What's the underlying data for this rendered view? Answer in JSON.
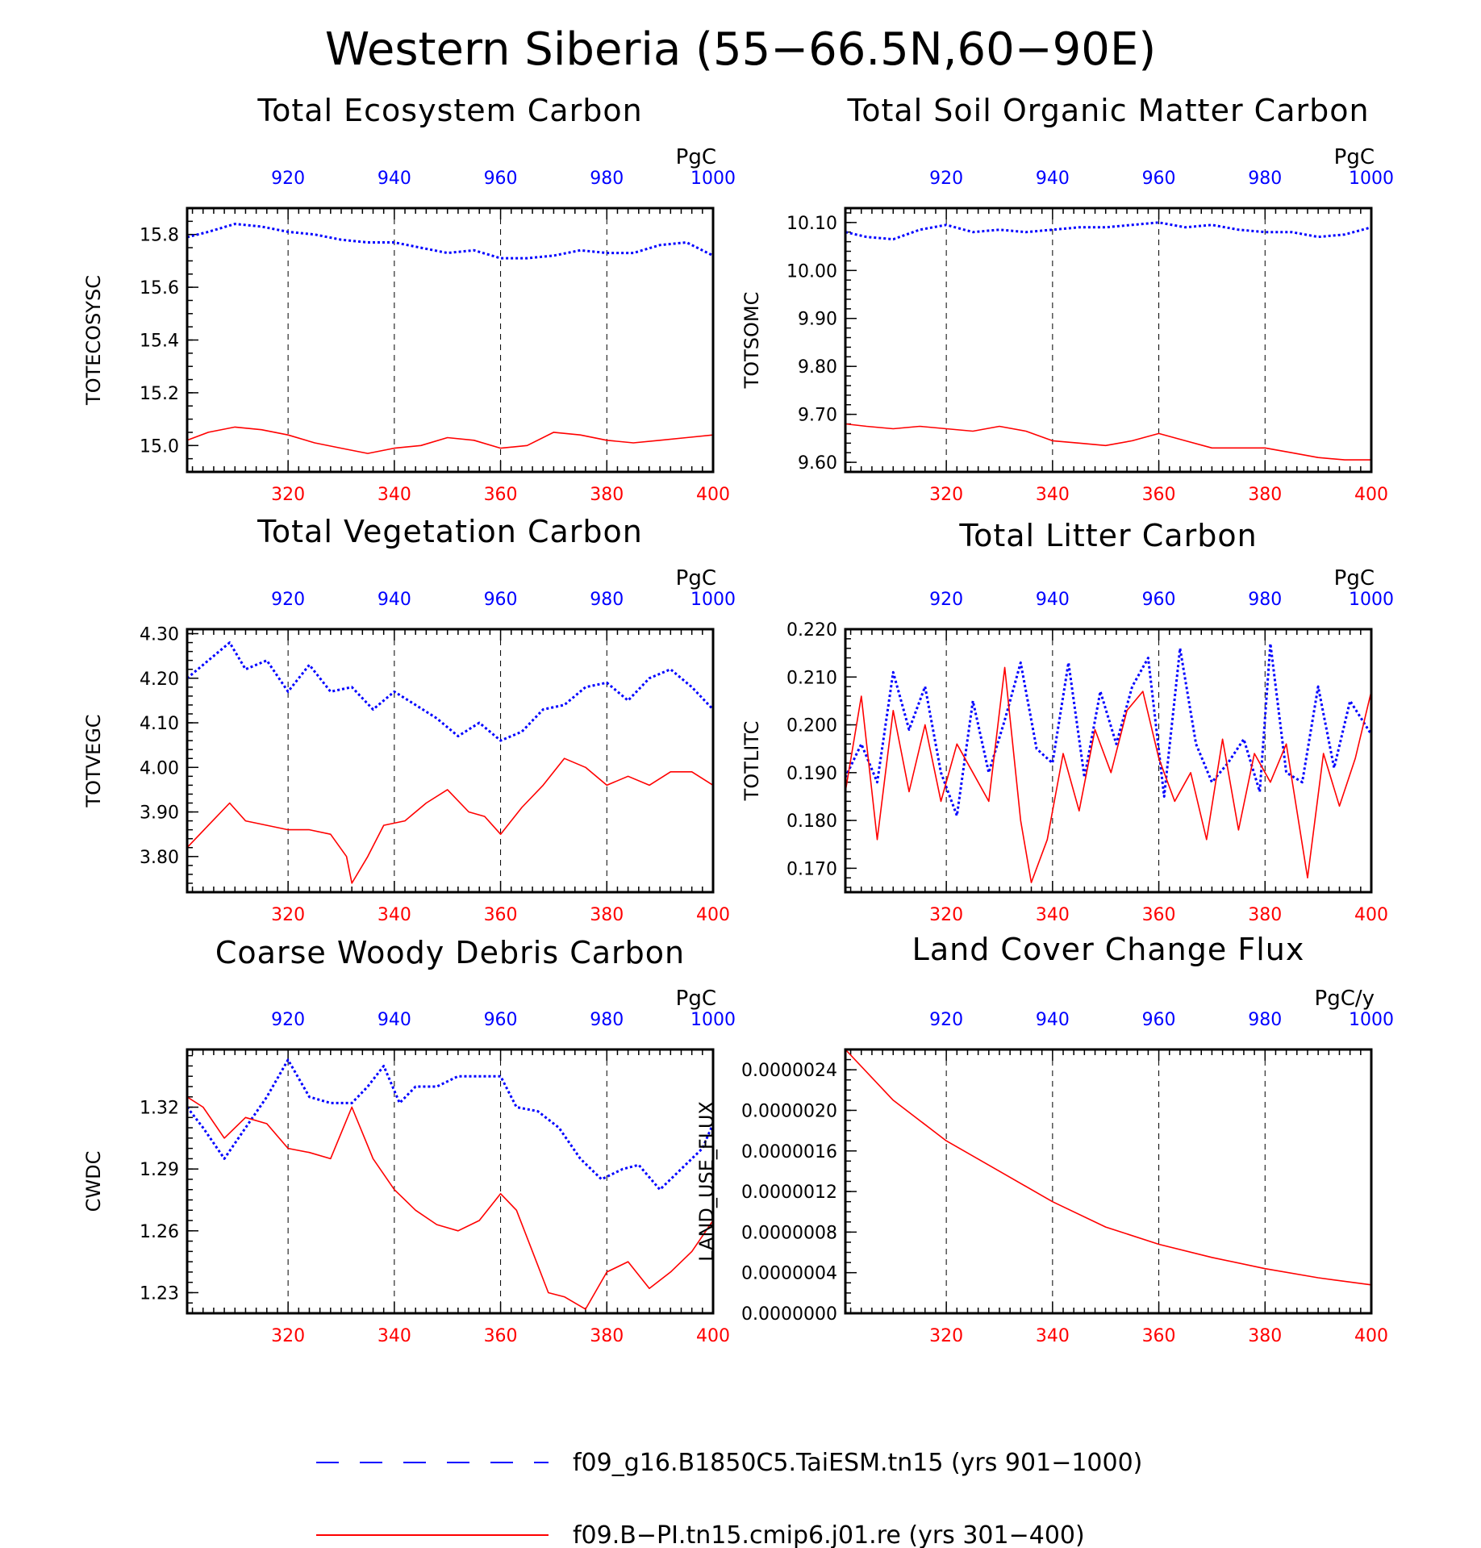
{
  "figure": {
    "title": "Western Siberia (55−66.5N,60−90E)"
  },
  "colors": {
    "series_a": "#0000ff",
    "series_b": "#ff0000",
    "axis": "#000000"
  },
  "legend": {
    "placement": "bottom",
    "entries": [
      {
        "label": "f09_g16.B1850C5.TaiESM.tn15 (yrs 901−1000)",
        "color": "#0000ff",
        "style": "dashed"
      },
      {
        "label": "f09.B−PI.tn15.cmip6.j01.re (yrs 301−400)",
        "color": "#ff0000",
        "style": "solid"
      }
    ]
  },
  "chart_data": [
    {
      "type": "line",
      "title": "Total Ecosystem Carbon",
      "ylabel": "TOTECOSYSC",
      "units": "PgC",
      "ylim": [
        14.9,
        15.9
      ],
      "yticks": [
        "15.0",
        "15.2",
        "15.4",
        "15.6",
        "15.8"
      ],
      "yminor": 0.05,
      "bottom_axis": {
        "range": [
          301,
          400
        ],
        "ticks": [
          "320",
          "340",
          "360",
          "380",
          "400"
        ]
      },
      "top_axis": {
        "range": [
          901,
          1000
        ],
        "ticks": [
          "920",
          "940",
          "960",
          "980",
          "1000"
        ]
      },
      "grid": "vertical dashed at major ticks",
      "series": [
        {
          "name": "f09_g16.B1850C5.TaiESM.tn15 (yrs 901−1000)",
          "axis": "top",
          "style": "dotted",
          "x": [
            901,
            905,
            910,
            915,
            920,
            925,
            930,
            935,
            940,
            945,
            950,
            955,
            960,
            965,
            970,
            975,
            980,
            985,
            990,
            995,
            1000
          ],
          "y": [
            15.79,
            15.81,
            15.84,
            15.83,
            15.81,
            15.8,
            15.78,
            15.77,
            15.77,
            15.75,
            15.73,
            15.74,
            15.71,
            15.71,
            15.72,
            15.74,
            15.73,
            15.73,
            15.76,
            15.77,
            15.72
          ]
        },
        {
          "name": "f09.B−PI.tn15.cmip6.j01.re (yrs 301−400)",
          "axis": "bottom",
          "style": "solid",
          "x": [
            301,
            305,
            310,
            315,
            320,
            325,
            330,
            335,
            340,
            345,
            350,
            355,
            360,
            365,
            370,
            375,
            380,
            385,
            390,
            395,
            400
          ],
          "y": [
            15.02,
            15.05,
            15.07,
            15.06,
            15.04,
            15.01,
            14.99,
            14.97,
            14.99,
            15.0,
            15.03,
            15.02,
            14.99,
            15.0,
            15.05,
            15.04,
            15.02,
            15.01,
            15.02,
            15.03,
            15.04
          ]
        }
      ]
    },
    {
      "type": "line",
      "title": "Total Soil Organic Matter Carbon",
      "ylabel": "TOTSOMC",
      "units": "PgC",
      "ylim": [
        9.58,
        10.13
      ],
      "yticks": [
        "9.60",
        "9.70",
        "9.80",
        "9.90",
        "10.00",
        "10.10"
      ],
      "yminor": 0.02,
      "bottom_axis": {
        "range": [
          301,
          400
        ],
        "ticks": [
          "320",
          "340",
          "360",
          "380",
          "400"
        ]
      },
      "top_axis": {
        "range": [
          901,
          1000
        ],
        "ticks": [
          "920",
          "940",
          "960",
          "980",
          "1000"
        ]
      },
      "grid": "vertical dashed at major ticks",
      "series": [
        {
          "name": "f09_g16.B1850C5.TaiESM.tn15 (yrs 901−1000)",
          "axis": "top",
          "style": "dotted",
          "x": [
            901,
            905,
            910,
            915,
            920,
            925,
            930,
            935,
            940,
            945,
            950,
            955,
            960,
            965,
            970,
            975,
            980,
            985,
            990,
            995,
            1000
          ],
          "y": [
            10.08,
            10.07,
            10.065,
            10.085,
            10.095,
            10.08,
            10.085,
            10.08,
            10.085,
            10.09,
            10.09,
            10.095,
            10.1,
            10.09,
            10.095,
            10.085,
            10.08,
            10.08,
            10.07,
            10.075,
            10.09
          ]
        },
        {
          "name": "f09.B−PI.tn15.cmip6.j01.re (yrs 301−400)",
          "axis": "bottom",
          "style": "solid",
          "x": [
            301,
            305,
            310,
            315,
            320,
            325,
            330,
            335,
            340,
            345,
            350,
            355,
            360,
            365,
            370,
            375,
            380,
            385,
            390,
            395,
            400
          ],
          "y": [
            9.68,
            9.675,
            9.67,
            9.675,
            9.67,
            9.665,
            9.675,
            9.665,
            9.645,
            9.64,
            9.635,
            9.645,
            9.66,
            9.645,
            9.63,
            9.63,
            9.63,
            9.62,
            9.61,
            9.605,
            9.605
          ]
        }
      ]
    },
    {
      "type": "line",
      "title": "Total Vegetation Carbon",
      "ylabel": "TOTVEGC",
      "units": "PgC",
      "ylim": [
        3.72,
        4.31
      ],
      "yticks": [
        "3.80",
        "3.90",
        "4.00",
        "4.10",
        "4.20",
        "4.30"
      ],
      "yminor": 0.02,
      "bottom_axis": {
        "range": [
          301,
          400
        ],
        "ticks": [
          "320",
          "340",
          "360",
          "380",
          "400"
        ]
      },
      "top_axis": {
        "range": [
          901,
          1000
        ],
        "ticks": [
          "920",
          "940",
          "960",
          "980",
          "1000"
        ]
      },
      "grid": "vertical dashed at major ticks",
      "series": [
        {
          "name": "f09_g16.B1850C5.TaiESM.tn15 (yrs 901−1000)",
          "axis": "top",
          "style": "dotted",
          "x": [
            901,
            905,
            909,
            912,
            916,
            920,
            924,
            928,
            932,
            936,
            940,
            944,
            948,
            952,
            956,
            960,
            964,
            968,
            972,
            976,
            980,
            984,
            988,
            992,
            996,
            1000
          ],
          "y": [
            4.2,
            4.24,
            4.28,
            4.22,
            4.24,
            4.17,
            4.23,
            4.17,
            4.18,
            4.13,
            4.17,
            4.14,
            4.11,
            4.07,
            4.1,
            4.06,
            4.08,
            4.13,
            4.14,
            4.18,
            4.19,
            4.15,
            4.2,
            4.22,
            4.18,
            4.13
          ]
        },
        {
          "name": "f09.B−PI.tn15.cmip6.j01.re (yrs 301−400)",
          "axis": "bottom",
          "style": "solid",
          "x": [
            301,
            305,
            309,
            312,
            316,
            320,
            324,
            328,
            331,
            332,
            335,
            338,
            342,
            346,
            350,
            354,
            357,
            360,
            364,
            368,
            372,
            376,
            380,
            384,
            388,
            392,
            396,
            400
          ],
          "y": [
            3.82,
            3.87,
            3.92,
            3.88,
            3.87,
            3.86,
            3.86,
            3.85,
            3.8,
            3.74,
            3.8,
            3.87,
            3.88,
            3.92,
            3.95,
            3.9,
            3.89,
            3.85,
            3.91,
            3.96,
            4.02,
            4.0,
            3.96,
            3.98,
            3.96,
            3.99,
            3.99,
            3.96
          ]
        }
      ]
    },
    {
      "type": "line",
      "title": "Total Litter Carbon",
      "ylabel": "TOTLITC",
      "units": "PgC",
      "ylim": [
        0.165,
        0.22
      ],
      "yticks": [
        "0.170",
        "0.180",
        "0.190",
        "0.200",
        "0.210",
        "0.220"
      ],
      "yminor": 0.002,
      "bottom_axis": {
        "range": [
          301,
          400
        ],
        "ticks": [
          "320",
          "340",
          "360",
          "380",
          "400"
        ]
      },
      "top_axis": {
        "range": [
          901,
          1000
        ],
        "ticks": [
          "920",
          "940",
          "960",
          "980",
          "1000"
        ]
      },
      "grid": "vertical dashed at major ticks",
      "series": [
        {
          "name": "f09_g16.B1850C5.TaiESM.tn15 (yrs 901−1000)",
          "axis": "top",
          "style": "dotted",
          "x": [
            901,
            904,
            907,
            910,
            913,
            916,
            919,
            922,
            925,
            928,
            931,
            934,
            937,
            940,
            943,
            946,
            949,
            952,
            955,
            958,
            961,
            964,
            967,
            970,
            973,
            976,
            979,
            981,
            984,
            987,
            990,
            993,
            996,
            1000
          ],
          "y": [
            0.189,
            0.196,
            0.188,
            0.211,
            0.199,
            0.208,
            0.19,
            0.181,
            0.205,
            0.19,
            0.201,
            0.213,
            0.195,
            0.192,
            0.213,
            0.189,
            0.207,
            0.196,
            0.208,
            0.214,
            0.185,
            0.216,
            0.196,
            0.188,
            0.192,
            0.197,
            0.186,
            0.217,
            0.19,
            0.188,
            0.208,
            0.191,
            0.205,
            0.198
          ]
        },
        {
          "name": "f09.B−PI.tn15.cmip6.j01.re (yrs 301−400)",
          "axis": "bottom",
          "style": "solid",
          "x": [
            301,
            304,
            307,
            310,
            313,
            316,
            319,
            322,
            325,
            328,
            331,
            334,
            336,
            339,
            342,
            345,
            348,
            351,
            354,
            357,
            360,
            363,
            366,
            369,
            372,
            375,
            378,
            381,
            384,
            388,
            391,
            394,
            397,
            400
          ],
          "y": [
            0.186,
            0.206,
            0.176,
            0.203,
            0.186,
            0.2,
            0.184,
            0.196,
            0.19,
            0.184,
            0.212,
            0.18,
            0.167,
            0.176,
            0.194,
            0.182,
            0.199,
            0.19,
            0.203,
            0.207,
            0.193,
            0.184,
            0.19,
            0.176,
            0.197,
            0.178,
            0.194,
            0.188,
            0.196,
            0.168,
            0.194,
            0.183,
            0.193,
            0.207
          ]
        }
      ]
    },
    {
      "type": "line",
      "title": "Coarse Woody Debris Carbon",
      "ylabel": "CWDC",
      "units": "PgC",
      "ylim": [
        1.22,
        1.348
      ],
      "yticks": [
        "1.23",
        "1.26",
        "1.29",
        "1.32"
      ],
      "yminor": 0.005,
      "bottom_axis": {
        "range": [
          301,
          400
        ],
        "ticks": [
          "320",
          "340",
          "360",
          "380",
          "400"
        ]
      },
      "top_axis": {
        "range": [
          901,
          1000
        ],
        "ticks": [
          "920",
          "940",
          "960",
          "980",
          "1000"
        ]
      },
      "grid": "vertical dashed at major ticks",
      "series": [
        {
          "name": "f09_g16.B1850C5.TaiESM.tn15 (yrs 901−1000)",
          "axis": "top",
          "style": "dotted",
          "x": [
            901,
            904,
            908,
            912,
            916,
            920,
            924,
            928,
            932,
            935,
            938,
            941,
            944,
            948,
            952,
            956,
            960,
            963,
            967,
            971,
            975,
            979,
            983,
            986,
            990,
            994,
            998,
            1000
          ],
          "y": [
            1.32,
            1.31,
            1.295,
            1.31,
            1.325,
            1.343,
            1.325,
            1.322,
            1.322,
            1.33,
            1.34,
            1.322,
            1.33,
            1.33,
            1.335,
            1.335,
            1.335,
            1.32,
            1.318,
            1.31,
            1.295,
            1.285,
            1.29,
            1.292,
            1.28,
            1.29,
            1.3,
            1.312
          ]
        },
        {
          "name": "f09.B−PI.tn15.cmip6.j01.re (yrs 301−400)",
          "axis": "bottom",
          "style": "solid",
          "x": [
            301,
            304,
            308,
            312,
            316,
            320,
            324,
            328,
            332,
            336,
            340,
            344,
            348,
            352,
            356,
            360,
            363,
            366,
            369,
            372,
            376,
            380,
            384,
            388,
            392,
            396,
            400
          ],
          "y": [
            1.325,
            1.32,
            1.305,
            1.315,
            1.312,
            1.3,
            1.298,
            1.295,
            1.32,
            1.295,
            1.28,
            1.27,
            1.263,
            1.26,
            1.265,
            1.278,
            1.27,
            1.25,
            1.23,
            1.228,
            1.222,
            1.24,
            1.245,
            1.232,
            1.24,
            1.25,
            1.265
          ]
        }
      ]
    },
    {
      "type": "line",
      "title": "Land Cover Change Flux",
      "ylabel": "LAND_USE_FLUX",
      "units": "PgC/y",
      "ylim": [
        0.0,
        2.6e-06
      ],
      "yticks": [
        "0.0000000",
        "0.0000004",
        "0.0000008",
        "0.0000012",
        "0.0000016",
        "0.0000020",
        "0.0000024"
      ],
      "yminor": 1e-07,
      "bottom_axis": {
        "range": [
          301,
          400
        ],
        "ticks": [
          "320",
          "340",
          "360",
          "380",
          "400"
        ]
      },
      "top_axis": {
        "range": [
          901,
          1000
        ],
        "ticks": [
          "920",
          "940",
          "960",
          "980",
          "1000"
        ]
      },
      "grid": "vertical dashed at major ticks",
      "series": [
        {
          "name": "f09.B−PI.tn15.cmip6.j01.re (yrs 301−400)",
          "axis": "bottom",
          "style": "solid",
          "x": [
            301,
            310,
            320,
            330,
            340,
            350,
            360,
            370,
            380,
            390,
            400
          ],
          "y": [
            2.6e-06,
            2.1e-06,
            1.7e-06,
            1.4e-06,
            1.1e-06,
            8.5e-07,
            6.8e-07,
            5.5e-07,
            4.4e-07,
            3.5e-07,
            2.8e-07
          ]
        }
      ]
    }
  ]
}
